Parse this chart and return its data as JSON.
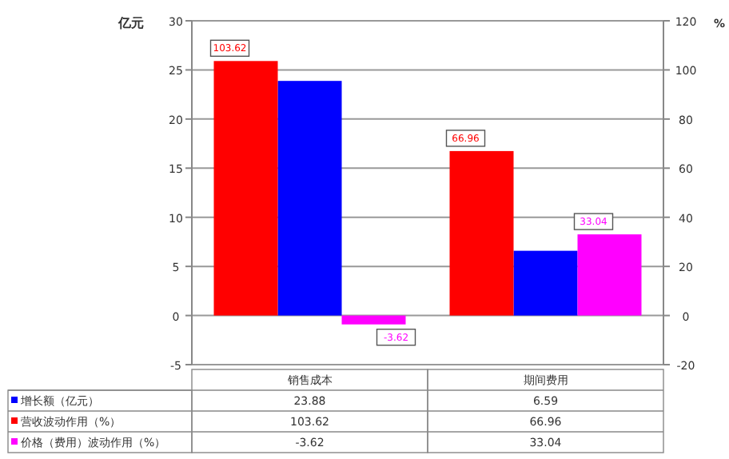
{
  "chart_data": {
    "type": "bar",
    "ylabel": "亿元",
    "y2label": "%",
    "categories": [
      "销售成本",
      "期间费用"
    ],
    "series": [
      {
        "name": "增长额（亿元）",
        "color": "#0000ff",
        "values": [
          23.88,
          6.59
        ]
      },
      {
        "name": "营收波动作用（%）",
        "color": "#ff0000",
        "values": [
          103.62,
          66.96
        ],
        "axis": "y2"
      },
      {
        "name": "价格（费用）波动作用（%）",
        "color": "#ff00ff",
        "values": [
          -3.62,
          33.04
        ],
        "axis": "y2"
      }
    ],
    "annotations": [
      "103.62",
      "66.96",
      "-3.62",
      "33.04"
    ],
    "ylim": [
      -5,
      30
    ],
    "yticks": [
      -5,
      0,
      5,
      10,
      15,
      20,
      25,
      30
    ],
    "y2lim": [
      -20,
      120
    ],
    "y2ticks": [
      -20,
      0,
      20,
      40,
      60,
      80,
      100,
      120
    ],
    "grid": "y",
    "legend": "bottom",
    "data_labels": true
  }
}
